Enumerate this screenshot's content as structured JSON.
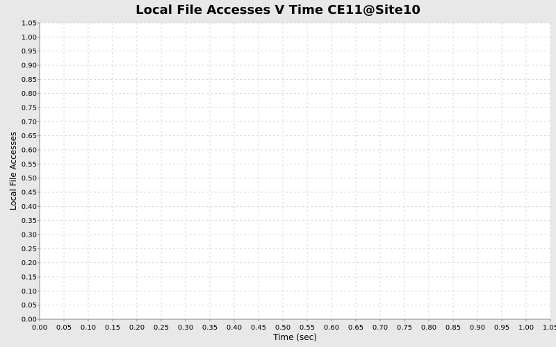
{
  "chart_data": {
    "type": "line",
    "title": "Local File Accesses V Time CE11@Site10",
    "xlabel": "Time (sec)",
    "ylabel": "Local File Accesses",
    "xlim": [
      0,
      1.05
    ],
    "ylim": [
      0,
      1.05
    ],
    "x_ticks": [
      "0.00",
      "0.05",
      "0.10",
      "0.15",
      "0.20",
      "0.25",
      "0.30",
      "0.35",
      "0.40",
      "0.45",
      "0.50",
      "0.55",
      "0.60",
      "0.65",
      "0.70",
      "0.75",
      "0.80",
      "0.85",
      "0.90",
      "0.95",
      "1.00",
      "1.05"
    ],
    "y_ticks": [
      "0.00",
      "0.05",
      "0.10",
      "0.15",
      "0.20",
      "0.25",
      "0.30",
      "0.35",
      "0.40",
      "0.45",
      "0.50",
      "0.55",
      "0.60",
      "0.65",
      "0.70",
      "0.75",
      "0.80",
      "0.85",
      "0.90",
      "0.95",
      "1.00",
      "1.05"
    ],
    "grid": true,
    "series": []
  }
}
